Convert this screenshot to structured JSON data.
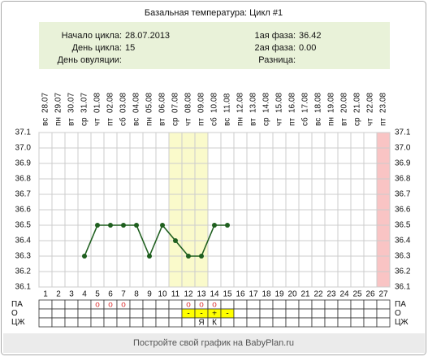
{
  "chart_data": {
    "type": "line",
    "title": "Базальная температура: Цикл #1",
    "info": {
      "left": [
        {
          "label": "Начало цикла:",
          "value": "28.07.2013"
        },
        {
          "label": "День цикла:",
          "value": "15"
        },
        {
          "label": "День овуляции:",
          "value": ""
        }
      ],
      "right": [
        {
          "label": "1ая фаза:",
          "value": "36.42"
        },
        {
          "label": "2ая фаза:",
          "value": "0.00"
        },
        {
          "label": "Разница:",
          "value": ""
        }
      ]
    },
    "categories": [
      "1",
      "2",
      "3",
      "4",
      "5",
      "6",
      "7",
      "8",
      "9",
      "10",
      "11",
      "12",
      "13",
      "14",
      "15",
      "16",
      "17",
      "18",
      "19",
      "20",
      "21",
      "22",
      "23",
      "24",
      "25",
      "26",
      "27"
    ],
    "weekdays": [
      "вс",
      "пн",
      "вт",
      "ср",
      "чт",
      "пт",
      "сб",
      "вс",
      "пн",
      "вт",
      "ср",
      "чт",
      "пт",
      "сб",
      "вс",
      "пн",
      "вт",
      "ср",
      "чт",
      "пт",
      "сб",
      "вс",
      "пн",
      "вт",
      "ср",
      "чт",
      "пт"
    ],
    "dates": [
      "28.07",
      "29.07",
      "30.07",
      "31.07",
      "01.08",
      "02.08",
      "03.08",
      "04.08",
      "05.08",
      "06.08",
      "07.08",
      "08.08",
      "09.08",
      "10.08",
      "11.08",
      "12.08",
      "13.08",
      "14.08",
      "15.08",
      "16.08",
      "17.08",
      "18.08",
      "19.08",
      "20.08",
      "21.08",
      "22.08",
      "23.08"
    ],
    "values": [
      null,
      null,
      null,
      36.3,
      36.5,
      36.5,
      36.5,
      36.5,
      36.3,
      36.5,
      36.4,
      36.3,
      36.3,
      36.5,
      36.5,
      null,
      null,
      null,
      null,
      null,
      null,
      null,
      null,
      null,
      null,
      null,
      null
    ],
    "color": "#1f5f1f",
    "ylim": [
      36.1,
      37.1
    ],
    "yticks": [
      36.1,
      36.2,
      36.3,
      36.4,
      36.5,
      36.6,
      36.7,
      36.8,
      36.9,
      {
        "value": 37,
        "label": "37.0"
      },
      37.1
    ],
    "grid": true,
    "bands": [
      {
        "from": 11,
        "to": 13,
        "color": "#fafacb"
      },
      {
        "from": 27,
        "to": 27,
        "color": "#f9c4c4"
      }
    ],
    "rows": [
      {
        "label": "ПА",
        "cells": [
          null,
          null,
          null,
          null,
          "о",
          "о",
          "о",
          null,
          null,
          null,
          null,
          "о",
          "о",
          "о",
          null,
          null,
          null,
          null,
          null,
          null,
          null,
          null,
          null,
          null,
          null,
          null,
          null
        ]
      },
      {
        "label": "О",
        "cells": [
          null,
          null,
          null,
          null,
          null,
          null,
          null,
          null,
          null,
          null,
          null,
          "-",
          "-",
          "+",
          "-",
          null,
          null,
          null,
          null,
          null,
          null,
          null,
          null,
          null,
          null,
          null,
          null
        ]
      },
      {
        "label": "ЦЖ",
        "cells": [
          null,
          null,
          null,
          null,
          null,
          null,
          null,
          null,
          null,
          null,
          null,
          null,
          "Я",
          "К",
          null,
          null,
          null,
          null,
          null,
          null,
          null,
          null,
          null,
          null,
          null,
          null,
          null
        ]
      }
    ],
    "footer": "Постройте свой график на BabyPlan.ru"
  }
}
